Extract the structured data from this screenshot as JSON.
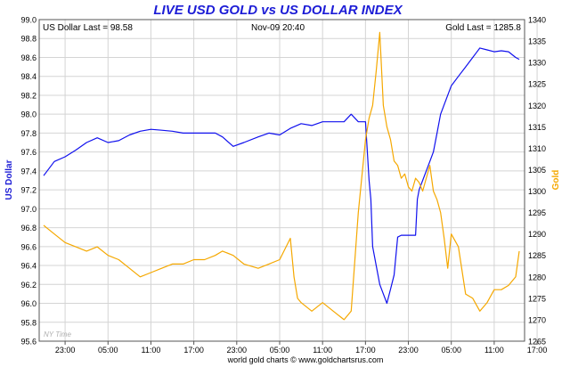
{
  "chart_data": {
    "type": "line",
    "title": "LIVE USD GOLD vs US DOLLAR INDEX",
    "y_left_label": "US Dollar",
    "y_right_label": "Gold",
    "stat_left": "US Dollar Last = 98.58",
    "stat_center": "Nov-09  20:40",
    "stat_right": "Gold Last = 1285.8",
    "watermark": "NY Time",
    "footer": "world gold charts © www.goldchartsrus.com",
    "y_left_range": [
      95.6,
      99.0
    ],
    "y_left_ticks": [
      "99.0",
      "98.8",
      "98.6",
      "98.4",
      "98.2",
      "98.0",
      "97.8",
      "97.6",
      "97.4",
      "97.2",
      "97.0",
      "96.8",
      "96.6",
      "96.4",
      "96.2",
      "96.0",
      "95.8",
      "95.6"
    ],
    "y_right_range": [
      1265,
      1340
    ],
    "y_right_ticks": [
      "1340",
      "1335",
      "1330",
      "1325",
      "1320",
      "1315",
      "1310",
      "1305",
      "1300",
      "1295",
      "1290",
      "1285",
      "1280",
      "1275",
      "1270",
      "1265"
    ],
    "x_ticks": [
      "23:00",
      "05:00",
      "11:00",
      "17:00",
      "23:00",
      "05:00",
      "11:00",
      "17:00",
      "23:00",
      "05:00",
      "11:00",
      "17:00"
    ],
    "colors": {
      "usd": "#1010ee",
      "gold": "#f5a800",
      "title": "#1c1cd6",
      "grid": "#d4d4d4"
    },
    "series": [
      {
        "name": "US Dollar",
        "axis": "left",
        "color": "#1010ee",
        "x": [
          0,
          3,
          6,
          9,
          12,
          15,
          18,
          21,
          24,
          27,
          30,
          33,
          36,
          39,
          42,
          45,
          48,
          50,
          53,
          56,
          60,
          63,
          66,
          69,
          72,
          75,
          78,
          81,
          84,
          86,
          88,
          90,
          91,
          91.5,
          92,
          93,
          94,
          95,
          96,
          97,
          98,
          99,
          100,
          101,
          102,
          103,
          104,
          104.5,
          105,
          106,
          107,
          108,
          109,
          110,
          111,
          112,
          114,
          116,
          118,
          120,
          121,
          122,
          124,
          126,
          128,
          130,
          132,
          133
        ],
        "y": [
          97.35,
          97.5,
          97.55,
          97.62,
          97.7,
          97.75,
          97.7,
          97.72,
          97.78,
          97.82,
          97.84,
          97.83,
          97.82,
          97.8,
          97.8,
          97.8,
          97.8,
          97.76,
          97.66,
          97.7,
          97.76,
          97.8,
          97.78,
          97.85,
          97.9,
          97.88,
          97.92,
          97.92,
          97.92,
          98.0,
          97.92,
          97.92,
          97.3,
          97.1,
          96.6,
          96.4,
          96.2,
          96.1,
          96.0,
          96.15,
          96.3,
          96.7,
          96.72,
          96.72,
          96.72,
          96.72,
          96.72,
          97.1,
          97.2,
          97.3,
          97.4,
          97.5,
          97.6,
          97.8,
          98.0,
          98.1,
          98.3,
          98.4,
          98.5,
          98.6,
          98.65,
          98.7,
          98.68,
          98.66,
          98.67,
          98.66,
          98.6,
          98.58
        ]
      },
      {
        "name": "Gold",
        "axis": "right",
        "color": "#f5a800",
        "x": [
          0,
          3,
          6,
          9,
          12,
          15,
          18,
          21,
          24,
          27,
          30,
          33,
          36,
          39,
          42,
          45,
          48,
          50,
          53,
          56,
          60,
          63,
          66,
          69,
          70,
          71,
          72,
          75,
          78,
          81,
          84,
          86,
          88,
          90,
          91,
          92,
          93,
          94,
          95,
          96,
          97,
          98,
          99,
          100,
          101,
          102,
          103,
          104,
          105,
          106,
          107,
          108,
          109,
          110,
          111,
          112,
          113,
          114,
          116,
          118,
          120,
          122,
          124,
          126,
          128,
          130,
          132,
          133
        ],
        "y": [
          1292,
          1290,
          1288,
          1287,
          1286,
          1287,
          1285,
          1284,
          1282,
          1280,
          1281,
          1282,
          1283,
          1283,
          1284,
          1284,
          1285,
          1286,
          1285,
          1283,
          1282,
          1283,
          1284,
          1289,
          1280,
          1275,
          1274,
          1272,
          1274,
          1272,
          1270,
          1272,
          1295,
          1312,
          1317,
          1320,
          1328,
          1337,
          1320,
          1315,
          1312,
          1307,
          1306,
          1303,
          1304,
          1301,
          1300,
          1303,
          1302,
          1300,
          1303,
          1306,
          1300,
          1298,
          1295,
          1289,
          1282,
          1290,
          1287,
          1276,
          1275,
          1272,
          1274,
          1277,
          1277,
          1278,
          1280,
          1286
        ]
      }
    ]
  }
}
